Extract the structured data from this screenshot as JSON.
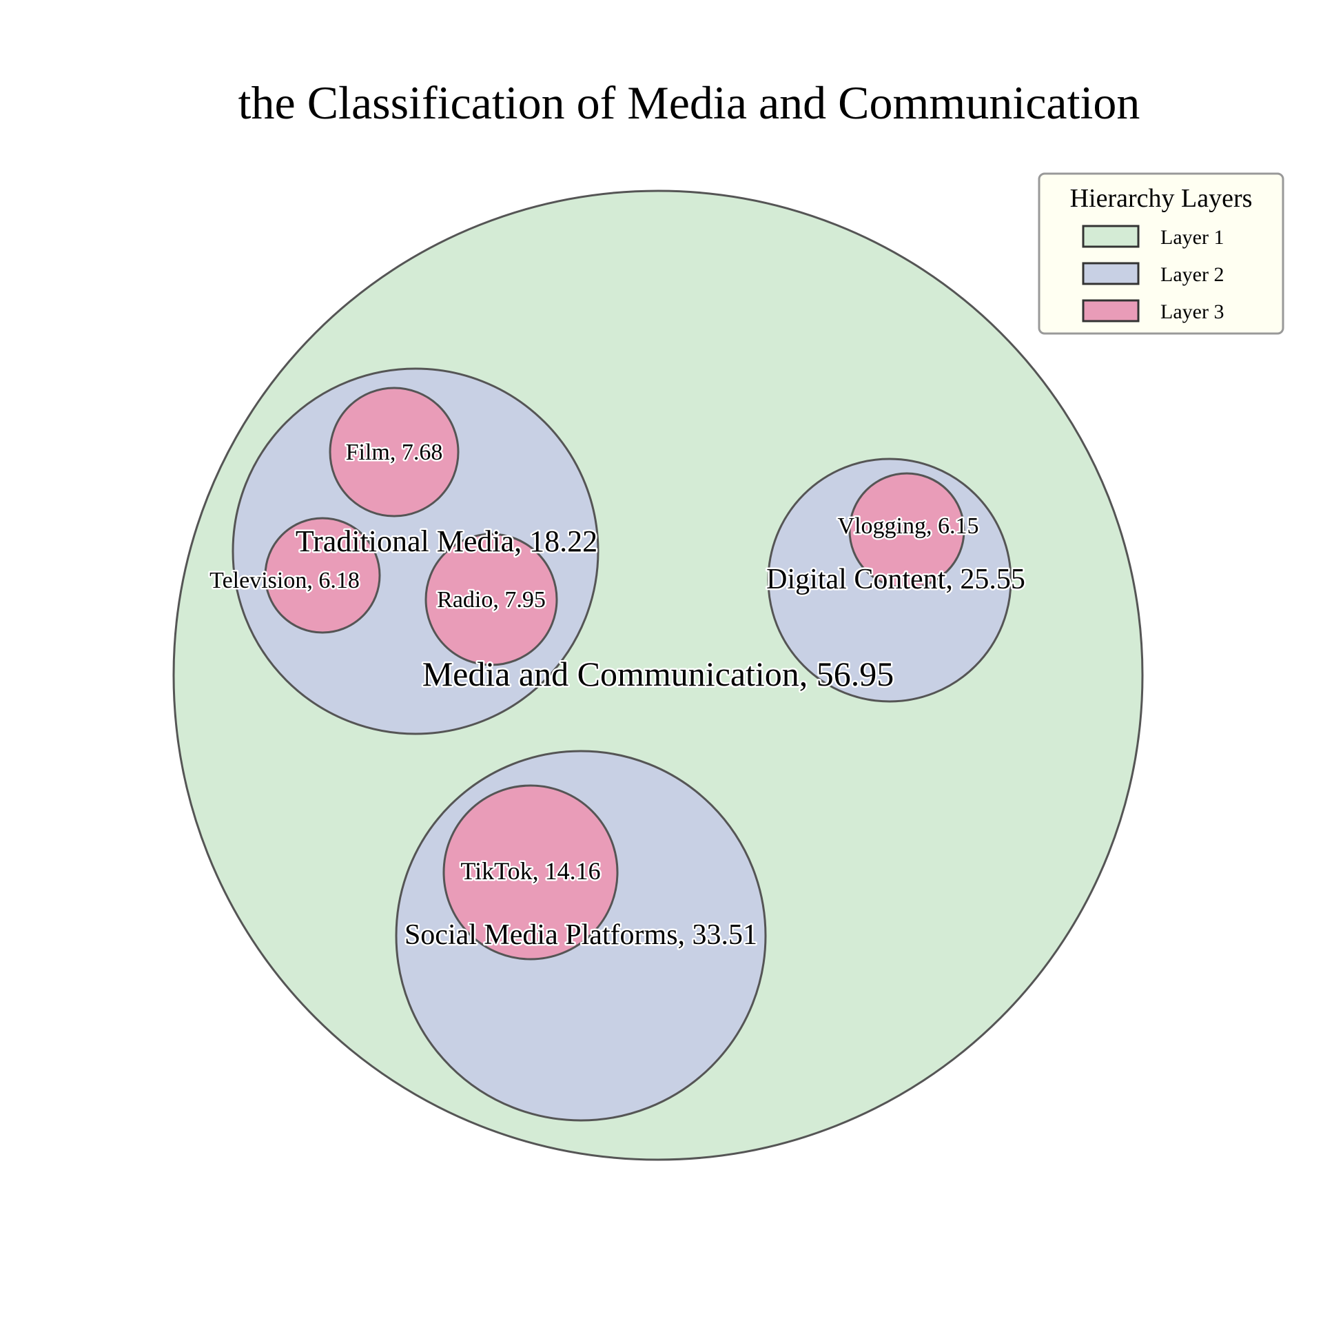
{
  "chart_data": {
    "type": "circle-packing",
    "title": "the Classification of Media and Communication",
    "legend": {
      "title": "Hierarchy Layers",
      "placement": "top-right",
      "items": [
        {
          "label": "Layer 1",
          "color": "#d4ebd5"
        },
        {
          "label": "Layer 2",
          "color": "#c8d0e4"
        },
        {
          "label": "Layer 3",
          "color": "#e99cb8"
        }
      ]
    },
    "nodes": [
      {
        "name": "Media and Communication",
        "value": 56.95,
        "layer": 1,
        "label": "Media and Communication, 56.95"
      },
      {
        "name": "Traditional Media",
        "value": 18.22,
        "layer": 2,
        "parent": "Media and Communication",
        "label": "Traditional Media, 18.22"
      },
      {
        "name": "Digital Content",
        "value": 25.55,
        "layer": 2,
        "parent": "Media and Communication",
        "label": "Digital Content, 25.55"
      },
      {
        "name": "Social Media Platforms",
        "value": 33.51,
        "layer": 2,
        "parent": "Media and Communication",
        "label": "Social Media Platforms, 33.51"
      },
      {
        "name": "Film",
        "value": 7.68,
        "layer": 3,
        "parent": "Traditional Media",
        "label": "Film, 7.68"
      },
      {
        "name": "Television",
        "value": 6.18,
        "layer": 3,
        "parent": "Traditional Media",
        "label": "Television, 6.18"
      },
      {
        "name": "Radio",
        "value": 7.95,
        "layer": 3,
        "parent": "Traditional Media",
        "label": "Radio, 7.95"
      },
      {
        "name": "Vlogging",
        "value": 6.15,
        "layer": 3,
        "parent": "Digital Content",
        "label": "Vlogging, 6.15"
      },
      {
        "name": "TikTok",
        "value": 14.16,
        "layer": 3,
        "parent": "Social Media Platforms",
        "label": "TikTok, 14.16"
      }
    ]
  }
}
